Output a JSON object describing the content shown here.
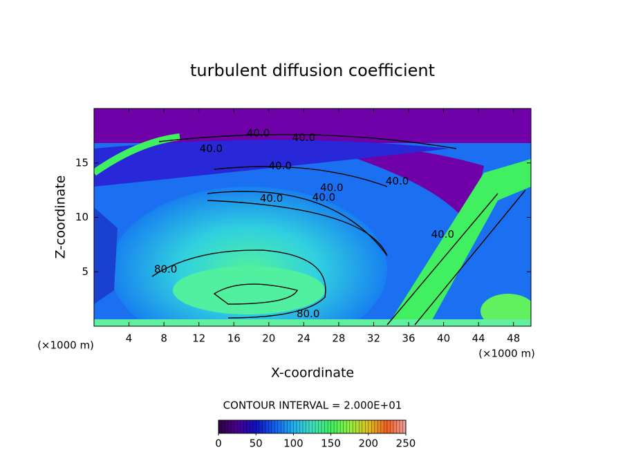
{
  "chart_data": {
    "type": "contour",
    "title": "turbulent diffusion coefficient",
    "x_label": "X-coordinate",
    "y_label": "Z-coordinate",
    "x_unit": "(×1000 m)",
    "xlim": [
      0,
      50
    ],
    "xticks": [
      4,
      8,
      12,
      16,
      20,
      24,
      28,
      32,
      36,
      40,
      44,
      48
    ],
    "ylim": [
      0,
      20
    ],
    "yticks": [
      5,
      10,
      15
    ],
    "contour_labels": [
      {
        "value": 40,
        "label": "40.0",
        "x": 18.8,
        "y": 17.7
      },
      {
        "value": 40,
        "label": "40.0",
        "x": 24.0,
        "y": 17.3
      },
      {
        "value": 40,
        "label": "40.0",
        "x": 13.4,
        "y": 16.3
      },
      {
        "value": 40,
        "label": "40.0",
        "x": 21.3,
        "y": 14.7
      },
      {
        "value": 40,
        "label": "40.0",
        "x": 34.7,
        "y": 13.3
      },
      {
        "value": 40,
        "label": "40.0",
        "x": 27.2,
        "y": 12.7
      },
      {
        "value": 40,
        "label": "40.0",
        "x": 26.3,
        "y": 11.8
      },
      {
        "value": 40,
        "label": "40.0",
        "x": 20.3,
        "y": 11.7
      },
      {
        "value": 40,
        "label": "40.0",
        "x": 39.9,
        "y": 8.4
      },
      {
        "value": 80,
        "label": "80.0",
        "x": 8.2,
        "y": 5.2
      },
      {
        "value": 80,
        "label": "80.0",
        "x": 24.5,
        "y": 1.1
      }
    ],
    "contour_interval_text": "CONTOUR INTERVAL = 2.000E+01",
    "clim": [
      0,
      250
    ],
    "cticks": [
      0,
      50,
      100,
      150,
      200,
      250
    ],
    "colormap": [
      "#300040",
      "#4a0090",
      "#1010c0",
      "#1060f0",
      "#20b0f0",
      "#40e0c0",
      "#40f060",
      "#90f040",
      "#e0c020",
      "#f06020",
      "#f0a0a0"
    ]
  }
}
